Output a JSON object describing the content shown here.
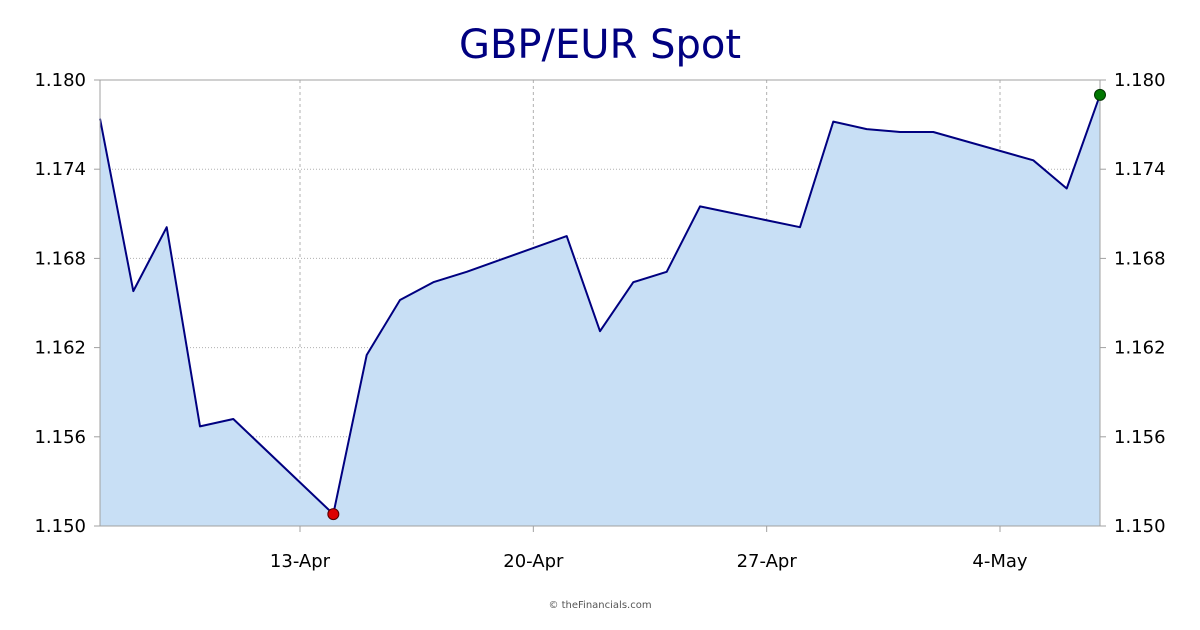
{
  "chart_data": {
    "type": "area",
    "title": "GBP/EUR Spot",
    "credit": "© theFinancials.com",
    "xlabel": "",
    "ylabel": "",
    "ylim": [
      1.15,
      1.18
    ],
    "y_ticks": [
      "1.150",
      "1.156",
      "1.162",
      "1.168",
      "1.174",
      "1.180"
    ],
    "x_ticks": [
      {
        "label": "13-Apr",
        "day": 13
      },
      {
        "label": "20-Apr",
        "day": 20
      },
      {
        "label": "27-Apr",
        "day": 27
      },
      {
        "label": "4-May",
        "day": 34
      }
    ],
    "x_range_days": [
      7,
      37
    ],
    "grid": true,
    "colors": {
      "line": "#000080",
      "fill": "#c8dff5",
      "low_marker": "#dd0000",
      "high_marker": "#007700"
    },
    "series": [
      {
        "x": [
          "7-Apr",
          "8-Apr",
          "9-Apr",
          "10-Apr",
          "11-Apr",
          "14-Apr",
          "15-Apr",
          "16-Apr",
          "17-Apr",
          "18-Apr",
          "21-Apr",
          "22-Apr",
          "23-Apr",
          "24-Apr",
          "25-Apr",
          "28-Apr",
          "29-Apr",
          "30-Apr",
          "1-May",
          "2-May",
          "5-May",
          "6-May",
          "7-May"
        ],
        "day": [
          7,
          8,
          9,
          10,
          11,
          14,
          15,
          16,
          17,
          18,
          21,
          22,
          23,
          24,
          25,
          28,
          29,
          30,
          31,
          32,
          35,
          36,
          37
        ],
        "values": [
          1.1774,
          1.1658,
          1.1701,
          1.1567,
          1.1572,
          1.1508,
          1.1615,
          1.1652,
          1.1664,
          1.1671,
          1.1695,
          1.1631,
          1.1664,
          1.1671,
          1.1715,
          1.1701,
          1.1772,
          1.1767,
          1.1765,
          1.1765,
          1.1746,
          1.1727,
          1.179
        ]
      }
    ],
    "markers": {
      "low_index": 5,
      "high_index": 22
    }
  }
}
